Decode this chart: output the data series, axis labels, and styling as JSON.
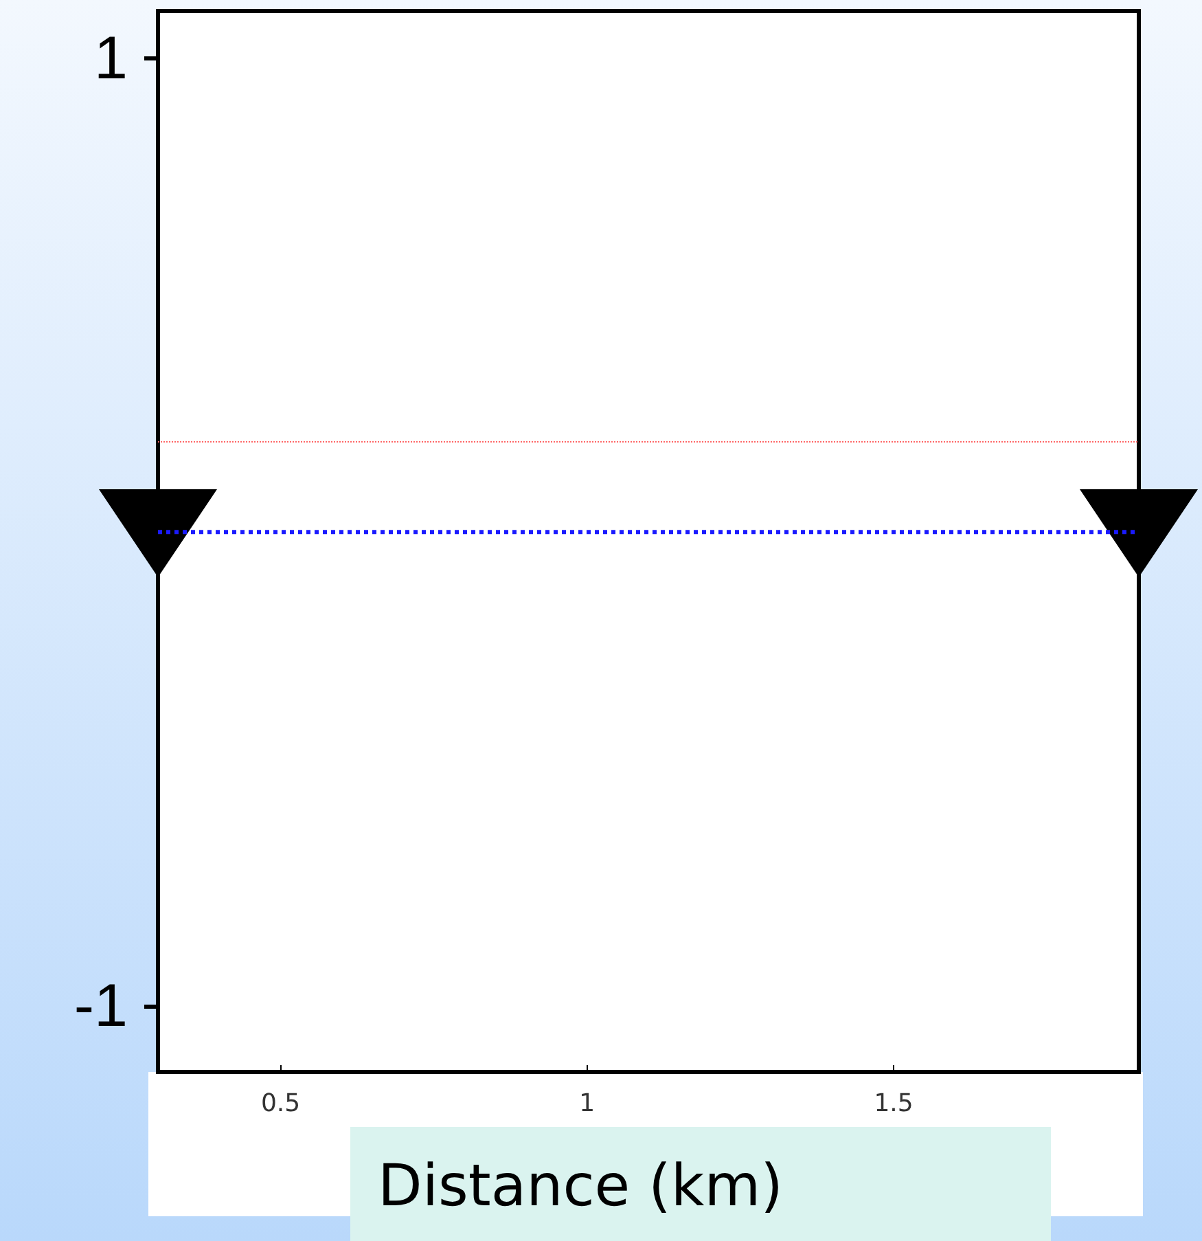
{
  "chart_data": {
    "type": "line",
    "xlabel": "Distance (km)",
    "x": [
      0.3,
      1.9
    ],
    "series": [
      {
        "color": "#1a1aff",
        "values": [
          0,
          0
        ],
        "line_style": "dotted"
      }
    ],
    "xlim": [
      0.3,
      1.9
    ],
    "xticks": [
      0.5,
      1,
      1.5
    ],
    "ylim": [
      -1.14,
      1.1
    ],
    "yticks": [
      -1,
      1
    ],
    "ref_lines": [
      {
        "axis": "y",
        "value": 0.19,
        "color": "#ff6666",
        "line_style": "dotted"
      }
    ],
    "grid": false
  }
}
